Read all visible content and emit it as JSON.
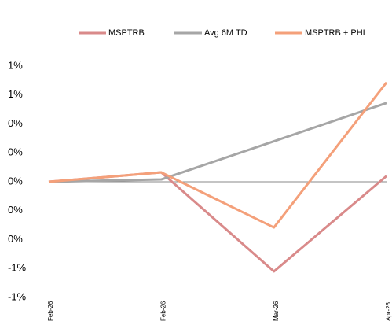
{
  "chart_data": {
    "type": "line",
    "categories": [
      "Feb-26",
      "Feb-26",
      "Mar-26",
      "Apr-26"
    ],
    "series": [
      {
        "name": "MSPTRB",
        "color": "#d98a8a",
        "values": [
          0,
          0.065,
          -0.62,
          0.04
        ]
      },
      {
        "name": "Avg 6M TD",
        "color": "#a6a6a6",
        "values": [
          0,
          0.016,
          0.28,
          0.545
        ]
      },
      {
        "name": "MSPTRB + PHI",
        "color": "#f4a07a",
        "values": [
          0,
          0.065,
          -0.316,
          0.687
        ]
      }
    ],
    "ylim": [
      -0.8,
      0.8
    ],
    "yticks": [
      {
        "value": 0.8,
        "label": "1%"
      },
      {
        "value": 0.6,
        "label": "1%"
      },
      {
        "value": 0.4,
        "label": "0%"
      },
      {
        "value": 0.2,
        "label": "0%"
      },
      {
        "value": 0,
        "label": "0%"
      },
      {
        "value": -0.2,
        "label": "0%"
      },
      {
        "value": -0.4,
        "label": "0%"
      },
      {
        "value": -0.6,
        "label": "-1%"
      },
      {
        "value": -0.8,
        "label": "-1%"
      }
    ]
  }
}
